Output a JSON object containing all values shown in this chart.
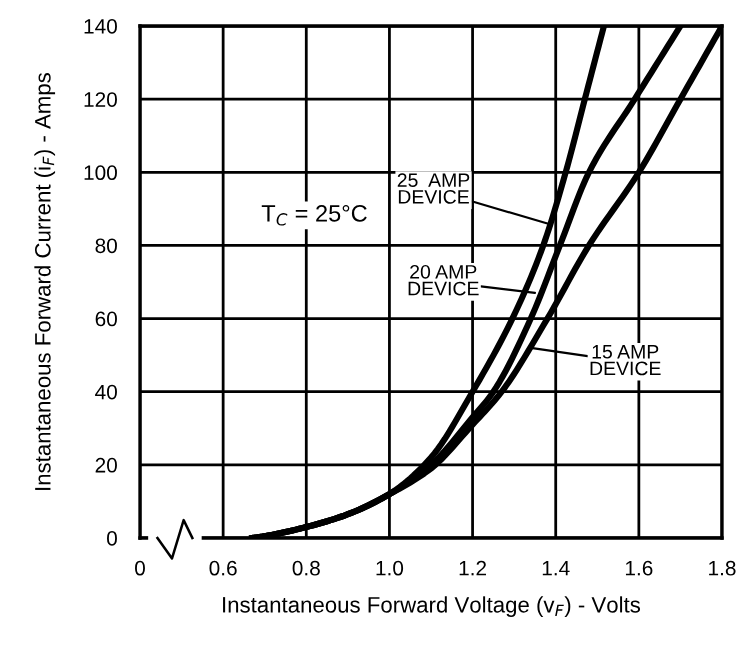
{
  "chart_data": {
    "type": "line",
    "xlabel": "Instantaneous Forward Voltage (v$_{F}$) - Volts",
    "ylabel": "Instantaneous Forward Current (i$_{F}$) - Amps",
    "xlim": [
      0.4,
      1.8
    ],
    "ylim": [
      0,
      140
    ],
    "xticks": [
      {
        "value": 0.4,
        "label": "0"
      },
      0.6,
      0.8,
      {
        "value": 1,
        "label": "1.0"
      },
      1.2,
      1.4,
      1.6,
      1.8
    ],
    "yticks": [
      0,
      20,
      40,
      60,
      80,
      100,
      120,
      140
    ],
    "grid": true,
    "marker": "none",
    "line_style": "solid",
    "series": [
      {
        "color": "#000000",
        "x": [
          0.67,
          0.7,
          0.8,
          0.9,
          1.0,
          1.1,
          1.2,
          1.3,
          1.37,
          1.424,
          1.47,
          1.516
        ],
        "values": [
          0,
          0.5,
          3,
          6.5,
          12,
          22,
          40,
          61,
          80,
          100,
          120,
          140
        ]
      },
      {
        "color": "#000000",
        "x": [
          0.67,
          0.7,
          0.8,
          0.9,
          1.0,
          1.1,
          1.2,
          1.25,
          1.34,
          1.41,
          1.48,
          1.59,
          1.7
        ],
        "values": [
          0,
          0.5,
          3,
          6.5,
          12,
          20,
          33,
          40,
          60,
          80,
          100,
          120,
          140
        ]
      },
      {
        "color": "#000000",
        "x": [
          0.67,
          0.7,
          0.8,
          0.9,
          1.0,
          1.1,
          1.2,
          1.27,
          1.38,
          1.48,
          1.6,
          1.7,
          1.8
        ],
        "values": [
          0,
          0.5,
          3,
          6.5,
          12,
          19,
          31,
          40,
          60,
          80,
          100,
          120,
          140
        ]
      }
    ],
    "annotations": [
      "T$_{C}$ = 25°C",
      {
        "text": "25  AMP\nDEVICE",
        "x": 1.38,
        "y": 86
      },
      {
        "text": "20 AMP\nDEVICE",
        "x": 1.35,
        "y": 67
      },
      {
        "text": "15 AMP\nDEVICE",
        "x": 1.34,
        "y": 52
      }
    ]
  }
}
